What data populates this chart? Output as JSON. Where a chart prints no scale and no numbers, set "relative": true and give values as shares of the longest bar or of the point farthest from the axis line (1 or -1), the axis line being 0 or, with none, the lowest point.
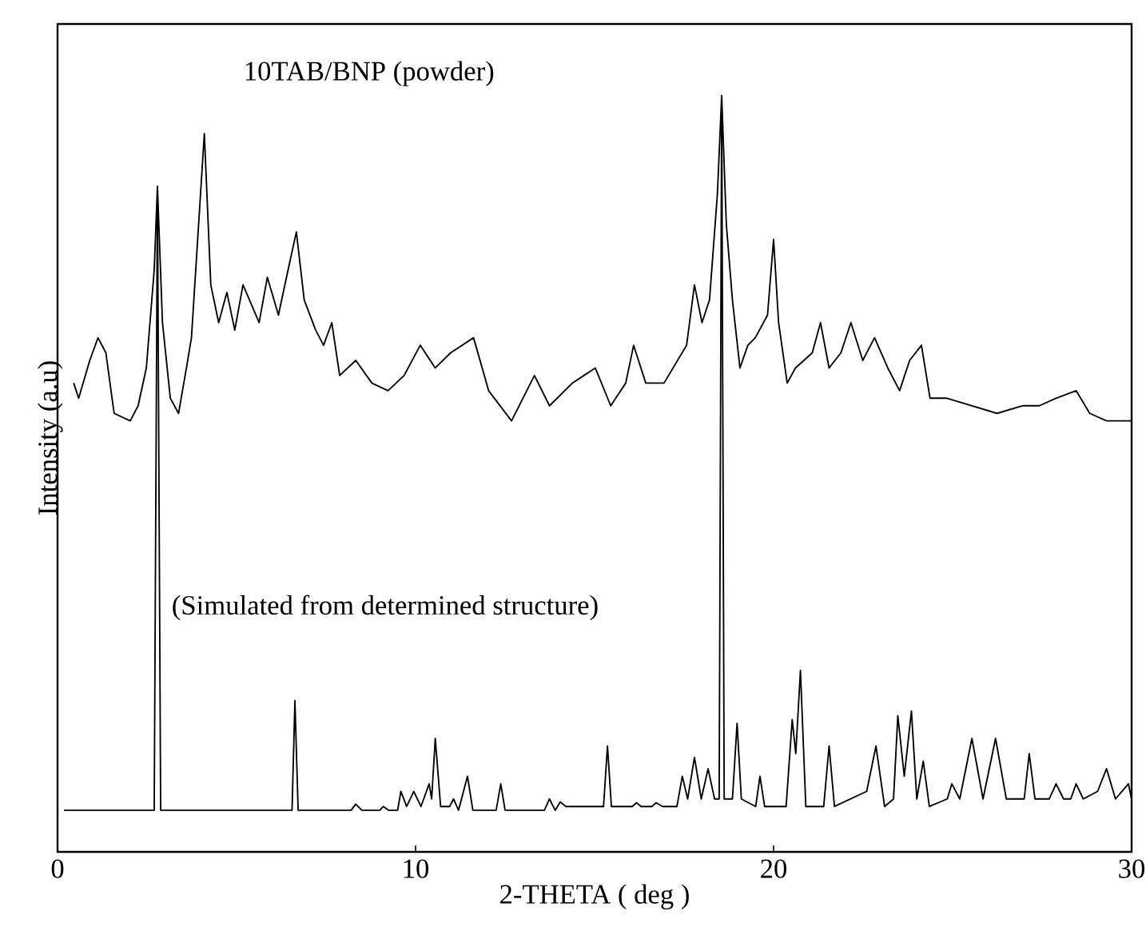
{
  "chart_data": {
    "type": "line",
    "relative": true,
    "xlabel": "2-THETA ( deg )",
    "ylabel": "Intensity (a.u)",
    "xlim": [
      0,
      30
    ],
    "xticks": [
      0,
      10,
      20,
      30
    ],
    "annotations": [
      "10TAB/BNP (powder)",
      "(Simulated from determined structure)"
    ],
    "series": [
      {
        "color": "#000000",
        "x": [
          0.45,
          0.59,
          0.9,
          1.13,
          1.35,
          1.58,
          2.03,
          2.25,
          2.48,
          2.7,
          2.79,
          2.93,
          3.15,
          3.38,
          3.6,
          3.74,
          4.1,
          4.28,
          4.5,
          4.73,
          4.95,
          5.18,
          5.63,
          5.86,
          6.17,
          6.44,
          6.67,
          6.89,
          7.21,
          7.43,
          7.66,
          7.88,
          8.33,
          8.78,
          9.23,
          9.68,
          10.13,
          10.55,
          10.98,
          11.62,
          12.04,
          12.68,
          13.32,
          13.74,
          14.38,
          15.02,
          15.45,
          15.87,
          16.09,
          16.43,
          16.94,
          17.57,
          17.79,
          18.0,
          18.21,
          18.43,
          18.55,
          18.68,
          18.85,
          19.06,
          19.28,
          19.49,
          19.83,
          20.0,
          20.14,
          20.38,
          20.61,
          21.08,
          21.31,
          21.55,
          21.88,
          22.16,
          22.49,
          22.82,
          23.19,
          23.52,
          23.8,
          24.13,
          24.37,
          24.84,
          25.54,
          26.24,
          26.95,
          27.42,
          27.89,
          28.45,
          28.83,
          29.3,
          30.0
        ],
        "values": [
          0.62,
          0.6,
          0.65,
          0.68,
          0.66,
          0.58,
          0.57,
          0.59,
          0.64,
          0.77,
          0.88,
          0.7,
          0.6,
          0.58,
          0.64,
          0.68,
          0.95,
          0.75,
          0.7,
          0.74,
          0.69,
          0.75,
          0.7,
          0.76,
          0.71,
          0.77,
          0.82,
          0.73,
          0.69,
          0.67,
          0.7,
          0.63,
          0.65,
          0.62,
          0.61,
          0.63,
          0.67,
          0.64,
          0.66,
          0.68,
          0.61,
          0.57,
          0.63,
          0.59,
          0.62,
          0.64,
          0.59,
          0.62,
          0.67,
          0.62,
          0.62,
          0.67,
          0.75,
          0.7,
          0.73,
          0.87,
          1.0,
          0.83,
          0.73,
          0.64,
          0.67,
          0.68,
          0.71,
          0.81,
          0.7,
          0.62,
          0.64,
          0.66,
          0.7,
          0.64,
          0.66,
          0.7,
          0.65,
          0.68,
          0.64,
          0.61,
          0.65,
          0.67,
          0.6,
          0.6,
          0.59,
          0.58,
          0.59,
          0.59,
          0.6,
          0.61,
          0.58,
          0.57,
          0.57
        ]
      },
      {
        "color": "#000000",
        "x": [
          0.18,
          2.7,
          2.79,
          2.88,
          6.55,
          6.63,
          6.72,
          8.2,
          8.33,
          8.5,
          9.0,
          9.1,
          9.25,
          9.5,
          9.59,
          9.75,
          9.95,
          10.15,
          10.38,
          10.45,
          10.55,
          10.7,
          10.95,
          11.06,
          11.2,
          11.45,
          11.6,
          12.25,
          12.38,
          12.5,
          13.6,
          13.74,
          13.9,
          14.04,
          14.2,
          15.25,
          15.36,
          15.47,
          16.05,
          16.17,
          16.3,
          16.6,
          16.72,
          16.9,
          17.3,
          17.45,
          17.6,
          17.79,
          17.98,
          18.17,
          18.35,
          18.48,
          18.55,
          18.62,
          18.85,
          18.98,
          19.1,
          19.5,
          19.62,
          19.75,
          20.35,
          20.52,
          20.62,
          20.75,
          20.9,
          21.4,
          21.55,
          21.7,
          22.6,
          22.86,
          23.1,
          23.35,
          23.47,
          23.65,
          23.85,
          24.0,
          24.18,
          24.35,
          24.85,
          24.98,
          25.2,
          25.54,
          25.85,
          26.2,
          26.5,
          27.0,
          27.14,
          27.3,
          27.7,
          27.89,
          28.1,
          28.3,
          28.45,
          28.65,
          29.05,
          29.3,
          29.55,
          29.91,
          30.0
        ],
        "values": [
          0.055,
          0.055,
          0.88,
          0.055,
          0.055,
          0.2,
          0.055,
          0.055,
          0.063,
          0.055,
          0.055,
          0.06,
          0.055,
          0.055,
          0.08,
          0.06,
          0.08,
          0.06,
          0.09,
          0.07,
          0.15,
          0.06,
          0.06,
          0.07,
          0.055,
          0.1,
          0.055,
          0.055,
          0.09,
          0.055,
          0.055,
          0.07,
          0.055,
          0.066,
          0.06,
          0.06,
          0.14,
          0.06,
          0.06,
          0.065,
          0.06,
          0.06,
          0.065,
          0.06,
          0.06,
          0.1,
          0.07,
          0.125,
          0.07,
          0.11,
          0.07,
          0.07,
          1.0,
          0.07,
          0.07,
          0.17,
          0.07,
          0.06,
          0.1,
          0.06,
          0.06,
          0.175,
          0.13,
          0.24,
          0.06,
          0.06,
          0.14,
          0.06,
          0.08,
          0.14,
          0.06,
          0.07,
          0.18,
          0.1,
          0.186,
          0.07,
          0.12,
          0.06,
          0.07,
          0.09,
          0.07,
          0.15,
          0.07,
          0.15,
          0.07,
          0.07,
          0.13,
          0.07,
          0.07,
          0.09,
          0.07,
          0.07,
          0.09,
          0.07,
          0.08,
          0.11,
          0.07,
          0.09,
          0.07
        ]
      }
    ]
  }
}
